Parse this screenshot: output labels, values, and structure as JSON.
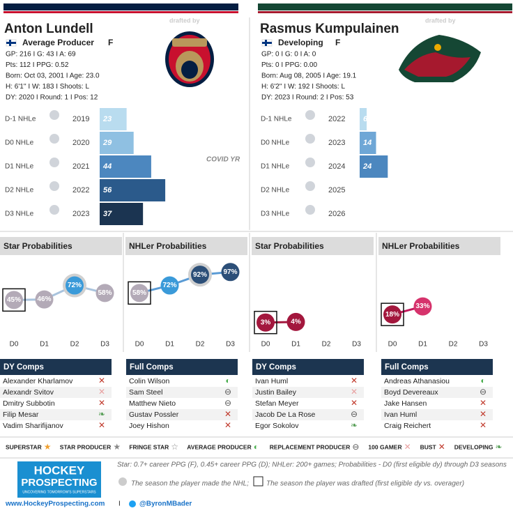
{
  "players": [
    {
      "name": "Anton Lundell",
      "drafted_by": "drafted by",
      "role": "Average Producer",
      "position": "F",
      "stats": [
        "GP: 216 I G: 43 I A: 69",
        "Pts: 112 I PPG: 0.52",
        "Born: Oct 03, 2001 I Age: 23.0",
        "H: 6'1'' I W: 183 I Shoots: L",
        "DY: 2020 I Round: 1 I Pos: 12"
      ],
      "seasons": {
        "labels": [
          "D-1 NHLe",
          "D0 NHLe",
          "D1 NHLe",
          "D2 NHLe",
          "D3 NHLe"
        ],
        "years": [
          "2019",
          "2020",
          "2021",
          "2022",
          "2023"
        ],
        "values": [
          23,
          29,
          44,
          56,
          37
        ],
        "colors": [
          "#b9dcef",
          "#8fc0e2",
          "#4c87bf",
          "#2b5a8b",
          "#1b3451"
        ]
      },
      "note": "COVID YR",
      "probabilities": [
        {
          "title": "Star Probabilities",
          "categories": [
            "D0",
            "D1",
            "D2",
            "D3"
          ],
          "values": [
            45,
            46,
            72,
            58
          ],
          "value_labels": [
            "45%",
            "46%",
            "72%",
            "58%"
          ],
          "colors": [
            "#b3aab7",
            "#b3aab7",
            "#3a9ad9",
            "#b3aab7"
          ],
          "line_color": "#a9c3dd",
          "drafted": "D0",
          "made_nhl": "D2"
        },
        {
          "title": "NHLer Probabilities",
          "categories": [
            "D0",
            "D1",
            "D2",
            "D3"
          ],
          "values": [
            58,
            72,
            92,
            97
          ],
          "value_labels": [
            "58%",
            "72%",
            "92%",
            "97%"
          ],
          "colors": [
            "#b3aab7",
            "#3a9ad9",
            "#2c4f78",
            "#2c4f78"
          ],
          "line_color": "#5a9bd5",
          "drafted": "D0",
          "made_nhl": "D2"
        }
      ],
      "comps": [
        {
          "title": "DY Comps",
          "names": [
            "Alexander Kharlamov",
            "Alexandr Svitov",
            "Dmitry Subbotin",
            "Filip Mesar",
            "Vadim Sharifijanov"
          ],
          "icons": [
            "✕",
            "✕",
            "✕",
            "❧",
            "✕"
          ],
          "icon_colors": [
            "#c0392b",
            "#e8a0a0",
            "#c0392b",
            "#5aa05a",
            "#c0392b"
          ]
        },
        {
          "title": "Full Comps",
          "names": [
            "Colin Wilson",
            "Sam Steel",
            "Matthew Nieto",
            "Gustav Possler",
            "Joey Hishon"
          ],
          "icons": [
            "◐",
            "⊖",
            "⊖",
            "✕",
            "✕"
          ],
          "icon_colors": [
            "#4caf50",
            "#555555",
            "#555555",
            "#c0392b",
            "#c0392b"
          ]
        }
      ]
    },
    {
      "name": "Rasmus Kumpulainen",
      "drafted_by": "drafted by",
      "role": "Developing",
      "position": "F",
      "stats": [
        "GP: 0 I G: 0 I A: 0",
        "Pts: 0 I PPG: 0.00",
        "Born: Aug 08, 2005 I Age: 19.1",
        "H: 6'2'' I W: 192 I Shoots: L",
        "DY: 2023 I Round: 2 I Pos: 53"
      ],
      "seasons": {
        "labels": [
          "D-1 NHLe",
          "D0 NHLe",
          "D1 NHLe",
          "D2 NHLe",
          "D3 NHLe"
        ],
        "years": [
          "2022",
          "2023",
          "2024",
          "2025",
          "2026"
        ],
        "values": [
          6,
          14,
          24,
          null,
          null
        ],
        "colors": [
          "#b9dcef",
          "#6fa7d6",
          "#4c87bf",
          "#4c87bf",
          "#4c87bf"
        ]
      },
      "probabilities": [
        {
          "title": "Star Probabilities",
          "categories": [
            "D0",
            "D1",
            "D2",
            "D3"
          ],
          "values": [
            3,
            4,
            null,
            null
          ],
          "value_labels": [
            "3%",
            "4%",
            null,
            null
          ],
          "colors": [
            "#a3173d",
            "#a3173d",
            "#a3173d",
            "#a3173d"
          ],
          "line_color": "#a3173d",
          "drafted": "D0"
        },
        {
          "title": "NHLer Probabilities",
          "categories": [
            "D0",
            "D1",
            "D2",
            "D3"
          ],
          "values": [
            18,
            33,
            null,
            null
          ],
          "value_labels": [
            "18%",
            "33%",
            null,
            null
          ],
          "colors": [
            "#a3173d",
            "#d6336c",
            "#d6336c",
            "#d6336c"
          ],
          "line_color": "#c2185b",
          "drafted": "D0"
        }
      ],
      "comps": [
        {
          "title": "DY Comps",
          "names": [
            "Ivan Huml",
            "Justin Bailey",
            "Stefan Meyer",
            "Jacob De La Rose",
            "Egor Sokolov"
          ],
          "icons": [
            "✕",
            "✕",
            "✕",
            "⊖",
            "❧"
          ],
          "icon_colors": [
            "#c0392b",
            "#e8a0a0",
            "#c0392b",
            "#555555",
            "#5aa05a"
          ]
        },
        {
          "title": "Full Comps",
          "names": [
            "Andreas Athanasiou",
            "Boyd Devereaux",
            "Jake Hansen",
            "Ivan Huml",
            "Craig Reichert"
          ],
          "icons": [
            "◐",
            "⊖",
            "✕",
            "✕",
            "✕"
          ],
          "icon_colors": [
            "#4caf50",
            "#555555",
            "#c0392b",
            "#c0392b",
            "#c0392b"
          ]
        }
      ]
    }
  ],
  "legend": [
    {
      "label": "SUPERSTAR",
      "icon": "★",
      "color": "#f0a030"
    },
    {
      "label": "STAR PRODUCER",
      "icon": "★",
      "color": "#888888"
    },
    {
      "label": "FRINGE STAR",
      "icon": "☆",
      "color": "#888888"
    },
    {
      "label": "AVERAGE PRODUCER",
      "icon": "◐",
      "color": "#4caf50"
    },
    {
      "label": "REPLACEMENT PRODUCER",
      "icon": "⊖",
      "color": "#555555"
    },
    {
      "label": "100 GAMER",
      "icon": "✕",
      "color": "#e8a0a0"
    },
    {
      "label": "BUST",
      "icon": "✕",
      "color": "#c0392b"
    },
    {
      "label": "DEVELOPING",
      "icon": "❧",
      "color": "#5aa05a"
    }
  ],
  "footer": {
    "logo": "HOCKEY",
    "logo2": "PROSPECTING",
    "tagline": "UNCOVERING TOMORROW'S SUPERSTARS",
    "definition": "Star: 0.7+ career PPG (F), 0.45+ career PPG (D); NHLer: 200+ games; Probabilities - D0 (first eligible dy) through D3 seasons",
    "nhl_note": "The season the player made the NHL;",
    "draft_note": "The season the player was drafted (first eligible dy vs. overager)",
    "website": "www.HockeyProspecting.com",
    "separator": "I",
    "twitter": "@ByronMBader"
  }
}
